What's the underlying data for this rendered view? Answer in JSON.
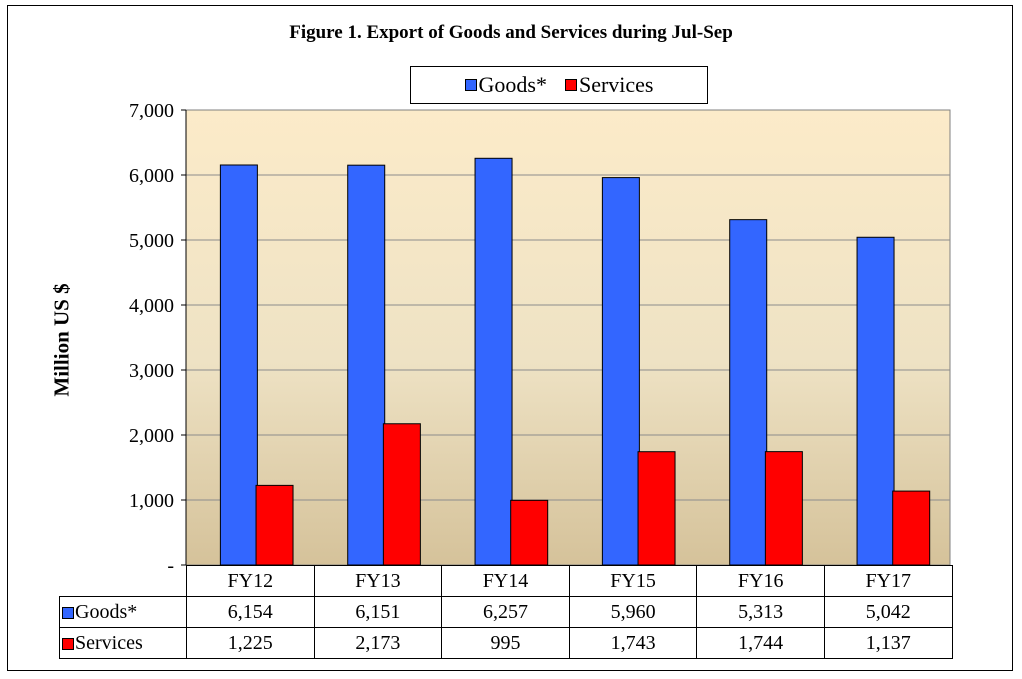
{
  "chart_data": {
    "type": "bar",
    "title": "Figure 1. Export of Goods and Services during Jul-Sep",
    "ylabel": "Million US $",
    "categories": [
      "FY12",
      "FY13",
      "FY14",
      "FY15",
      "FY16",
      "FY17"
    ],
    "series": [
      {
        "name": "Goods*",
        "color": "#3366FF",
        "values": [
          6154,
          6151,
          6257,
          5960,
          5313,
          5042
        ]
      },
      {
        "name": "Services",
        "color": "#FF0000",
        "values": [
          1225,
          2173,
          995,
          1743,
          1744,
          1137
        ]
      }
    ],
    "ylim": [
      0,
      7000
    ],
    "yticks": [
      "-",
      "1,000",
      "2,000",
      "3,000",
      "4,000",
      "5,000",
      "6,000",
      "7,000"
    ],
    "grid": true,
    "legend": "top",
    "table": {
      "rows": [
        {
          "label": "Goods*",
          "cells": [
            "6,154",
            "6,151",
            "6,257",
            "5,960",
            "5,313",
            "5,042"
          ]
        },
        {
          "label": "Services",
          "cells": [
            "1,225",
            "2,173",
            "995",
            "1,743",
            "1,744",
            "1,137"
          ]
        }
      ]
    }
  }
}
